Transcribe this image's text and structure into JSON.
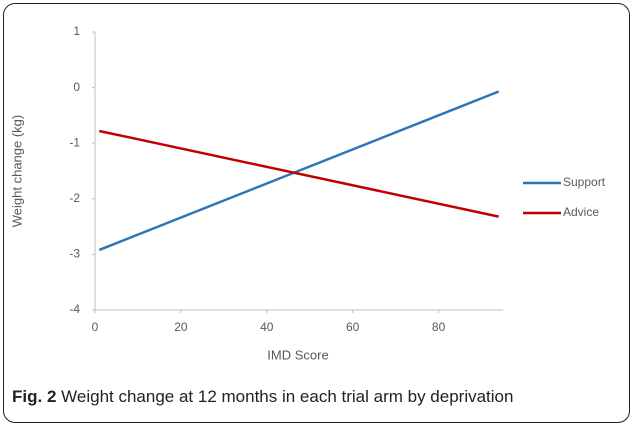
{
  "chart_data": {
    "type": "line",
    "x_label": "IMD Score",
    "y_label": "Weight change (kg)",
    "x": [
      1,
      94
    ],
    "series": [
      {
        "name": "Support",
        "color": "#2e75b6",
        "values": [
          -2.92,
          -0.07
        ]
      },
      {
        "name": "Advice",
        "color": "#c00000",
        "values": [
          -0.78,
          -2.32
        ]
      }
    ],
    "xlim": [
      0,
      95
    ],
    "xticks": [
      0,
      20,
      40,
      60,
      80
    ],
    "ylim": [
      -4,
      1
    ],
    "yticks": [
      -4,
      -3,
      -2,
      -1,
      0,
      1
    ],
    "legend": "right",
    "caption_label": "Fig. 2",
    "caption": "Weight change at 12 months in each trial arm by deprivation"
  }
}
